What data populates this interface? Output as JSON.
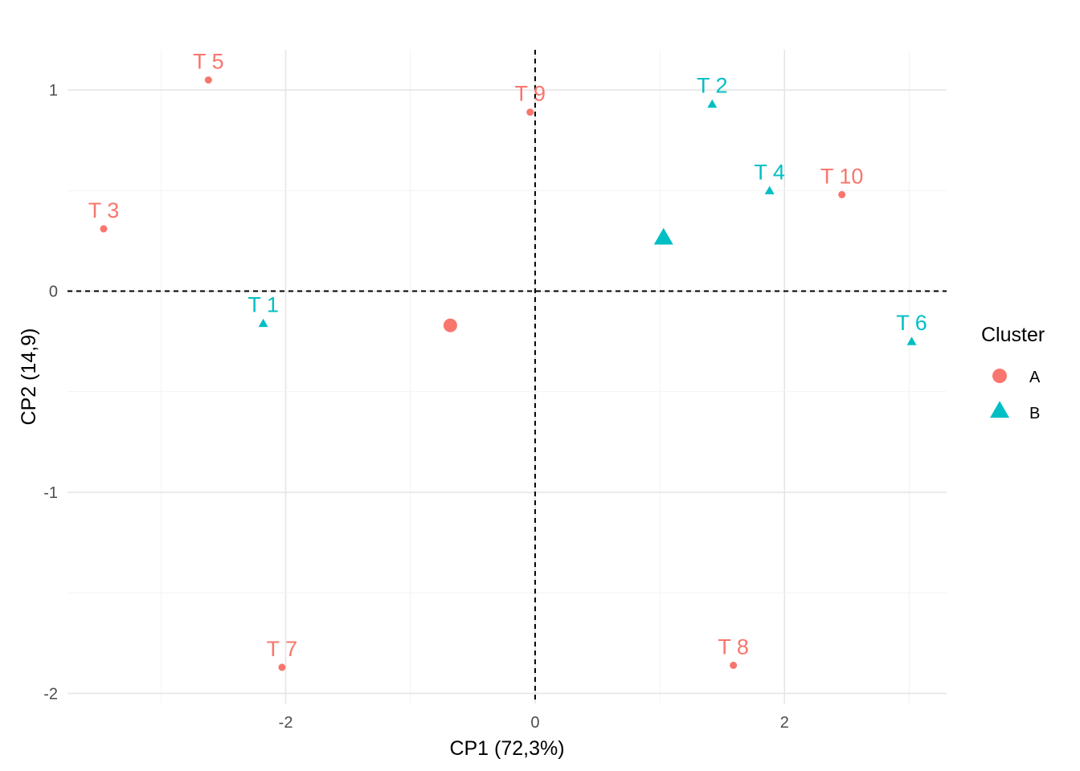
{
  "chart_data": {
    "type": "scatter",
    "xlabel": "CP1 (72,3%)",
    "ylabel": "CP2 (14,9)",
    "xlim": [
      -3.75,
      3.3
    ],
    "ylim": [
      -2.05,
      1.2
    ],
    "x_ticks": [
      -2,
      0,
      2
    ],
    "x_tick_labels": [
      "-2",
      "0",
      "2"
    ],
    "y_ticks": [
      -2,
      -1,
      0,
      1
    ],
    "y_tick_labels": [
      "-2",
      "-1",
      "0",
      "1"
    ],
    "grid": true,
    "reference_lines": {
      "x": 0,
      "y": 0,
      "style": "dashed"
    },
    "legend": {
      "title": "Cluster",
      "placement": "right",
      "entries": [
        {
          "label": "A",
          "shape": "circle",
          "color": "#F8766D"
        },
        {
          "label": "B",
          "shape": "triangle",
          "color": "#00BFC4"
        }
      ]
    },
    "points": [
      {
        "label": "T 5",
        "x": -2.62,
        "y": 1.05,
        "cluster": "A"
      },
      {
        "label": "T 9",
        "x": -0.04,
        "y": 0.89,
        "cluster": "A"
      },
      {
        "label": "T 2",
        "x": 1.42,
        "y": 0.93,
        "cluster": "B"
      },
      {
        "label": "T 4",
        "x": 1.88,
        "y": 0.5,
        "cluster": "B"
      },
      {
        "label": "T 10",
        "x": 2.46,
        "y": 0.48,
        "cluster": "A"
      },
      {
        "label": "T 3",
        "x": -3.46,
        "y": 0.31,
        "cluster": "A"
      },
      {
        "label": "T 1",
        "x": -2.18,
        "y": -0.16,
        "cluster": "B"
      },
      {
        "label": "T 6",
        "x": 3.02,
        "y": -0.25,
        "cluster": "B"
      },
      {
        "label": "T 7",
        "x": -2.03,
        "y": -1.87,
        "cluster": "A"
      },
      {
        "label": "T 8",
        "x": 1.59,
        "y": -1.86,
        "cluster": "A"
      }
    ],
    "centroids": [
      {
        "cluster": "A",
        "x": -0.68,
        "y": -0.17
      },
      {
        "cluster": "B",
        "x": 1.03,
        "y": 0.26
      }
    ]
  }
}
